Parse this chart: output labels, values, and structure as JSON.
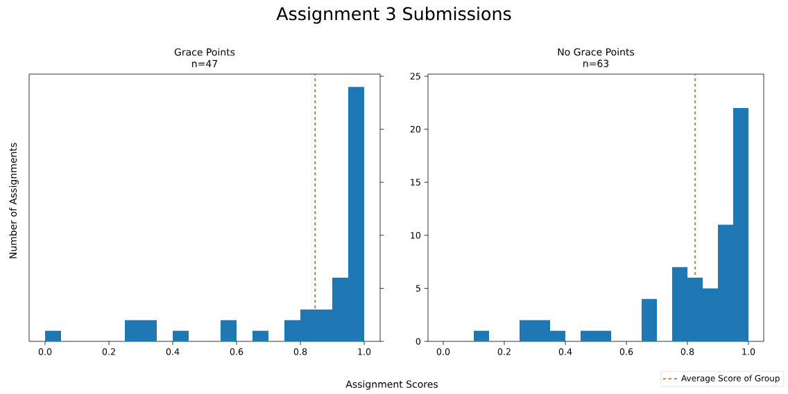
{
  "chart_data": [
    {
      "type": "histogram",
      "title": "Grace Points",
      "subtitle": "n=47",
      "xlabel": "Assignment Scores",
      "ylabel": "Number of Assignments",
      "annotations": [
        "Assignment 3 Submissions"
      ],
      "bins": [
        0,
        0.05,
        0.1,
        0.15,
        0.2,
        0.25,
        0.3,
        0.35,
        0.4,
        0.45,
        0.5,
        0.55,
        0.6,
        0.65,
        0.7,
        0.75,
        0.8,
        0.85,
        0.9,
        0.95,
        1.0
      ],
      "values": [
        1,
        0,
        0,
        0,
        0,
        2,
        2,
        0,
        1,
        0,
        0,
        2,
        0,
        1,
        0,
        2,
        3,
        3,
        6,
        24
      ],
      "color": "#1f77b4",
      "xlim": [
        -0.05,
        1.05
      ],
      "ylim": [
        0,
        25.2
      ],
      "xticks": [
        {
          "value": 0,
          "label": "0.0"
        },
        {
          "value": 0.2,
          "label": "0.2"
        },
        {
          "value": 0.4,
          "label": "0.4"
        },
        {
          "value": 0.6,
          "label": "0.6"
        },
        {
          "value": 0.8,
          "label": "0.8"
        },
        {
          "value": 1,
          "label": "1.0"
        }
      ],
      "yticks": [
        {
          "value": 0,
          "label": null
        },
        {
          "value": 5,
          "label": null
        },
        {
          "value": 10,
          "label": null
        },
        {
          "value": 15,
          "label": null
        },
        {
          "value": 20,
          "label": null
        },
        {
          "value": 25,
          "label": null
        }
      ],
      "tick_labels": "x",
      "ref_lines": [
        {
          "axis": "x",
          "value": 0.846,
          "color": "#cc5500",
          "line_style": "dashed"
        }
      ]
    },
    {
      "type": "histogram",
      "title": "No Grace Points",
      "subtitle": "n=63",
      "bins": [
        0,
        0.05,
        0.1,
        0.15,
        0.2,
        0.25,
        0.3,
        0.35,
        0.4,
        0.45,
        0.5,
        0.55,
        0.6,
        0.65,
        0.7,
        0.75,
        0.8,
        0.85,
        0.9,
        0.95,
        1.0
      ],
      "values": [
        0,
        0,
        1,
        0,
        0,
        2,
        2,
        1,
        0,
        1,
        1,
        0,
        0,
        4,
        0,
        7,
        6,
        5,
        11,
        22
      ],
      "color": "#1f77b4",
      "xlim": [
        -0.05,
        1.05
      ],
      "ylim": [
        0,
        25.2
      ],
      "xticks": [
        {
          "value": 0,
          "label": "0.0"
        },
        {
          "value": 0.2,
          "label": "0.2"
        },
        {
          "value": 0.4,
          "label": "0.4"
        },
        {
          "value": 0.6,
          "label": "0.6"
        },
        {
          "value": 0.8,
          "label": "0.8"
        },
        {
          "value": 1,
          "label": "1.0"
        }
      ],
      "yticks": [
        0,
        5,
        10,
        15,
        20,
        25
      ],
      "ref_lines": [
        {
          "axis": "x",
          "value": 0.825,
          "label": "Average Score of Group",
          "color": "#cc5500",
          "line_style": "dashed"
        }
      ],
      "legend": "bottom right"
    }
  ]
}
